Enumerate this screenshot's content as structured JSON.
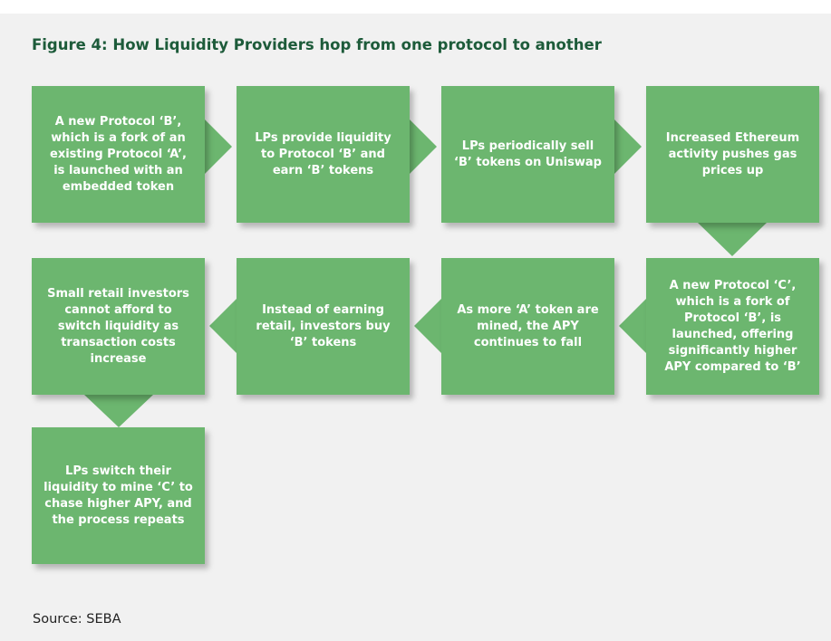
{
  "title": "Figure 4: How Liquidity Providers hop from one protocol to another",
  "nodes": [
    {
      "label": "A new Protocol ‘B’, which is a fork of an existing Protocol ‘A’, is launched with an embedded token"
    },
    {
      "label": "LPs provide liquidity to Protocol ‘B’ and earn ‘B’ tokens"
    },
    {
      "label": "LPs periodically sell ‘B’ tokens on Uniswap"
    },
    {
      "label": "Increased Ethereum activity pushes gas prices up"
    },
    {
      "label": "A new Protocol ‘C’, which is a fork of Protocol ‘B’, is launched, offering significantly higher APY compared to ‘B’"
    },
    {
      "label": "As more ‘A’ token are mined, the APY continues to fall"
    },
    {
      "label": "Instead of earning retail, investors buy ‘B’ tokens"
    },
    {
      "label": "Small retail investors cannot afford to switch liquidity as transaction costs increase"
    },
    {
      "label": "LPs switch their liquidity to mine ‘C’ to chase higher APY, and the process repeats"
    }
  ],
  "source": "Source: SEBA"
}
